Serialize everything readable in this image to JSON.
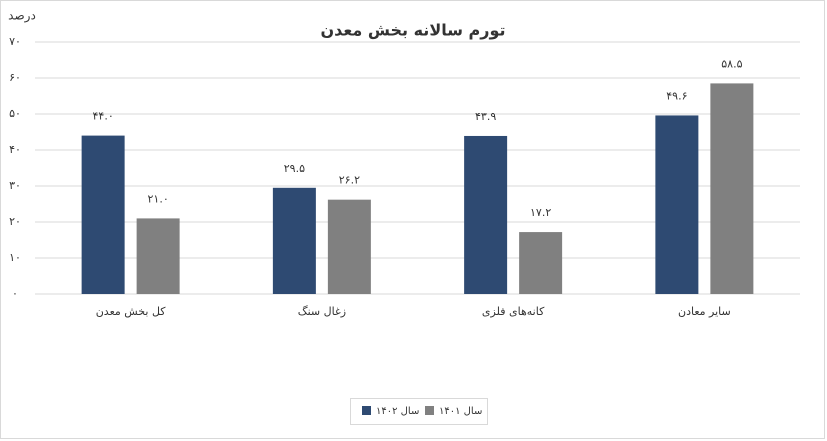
{
  "chart_data": {
    "type": "bar",
    "title": "تورم سالانه بخش معدن",
    "y_label": "درصد",
    "categories": [
      "کل بخش معدن",
      "زغال سنگ",
      "کانه‌های فلزی",
      "سایر معادن"
    ],
    "series": [
      {
        "name": "سال ۱۴۰۲",
        "color": "#2e4a72",
        "values": [
          44.0,
          29.5,
          43.9,
          49.6
        ],
        "value_labels": [
          "۴۴.۰",
          "۲۹.۵",
          "۴۳.۹",
          "۴۹.۶"
        ]
      },
      {
        "name": "سال ۱۴۰۱",
        "color": "#808080",
        "values": [
          21.0,
          26.2,
          17.2,
          58.5
        ],
        "value_labels": [
          "۲۱.۰",
          "۲۶.۲",
          "۱۷.۲",
          "۵۸.۵"
        ]
      }
    ],
    "ylim": [
      0,
      70
    ],
    "yticks": [
      {
        "value": 0,
        "label": "۰"
      },
      {
        "value": 10,
        "label": "۱۰"
      },
      {
        "value": 20,
        "label": "۲۰"
      },
      {
        "value": 30,
        "label": "۳۰"
      },
      {
        "value": 40,
        "label": "۴۰"
      },
      {
        "value": 50,
        "label": "۵۰"
      },
      {
        "value": 60,
        "label": "۶۰"
      },
      {
        "value": 70,
        "label": "۷۰"
      }
    ],
    "grid": true,
    "legend": "bottom"
  }
}
